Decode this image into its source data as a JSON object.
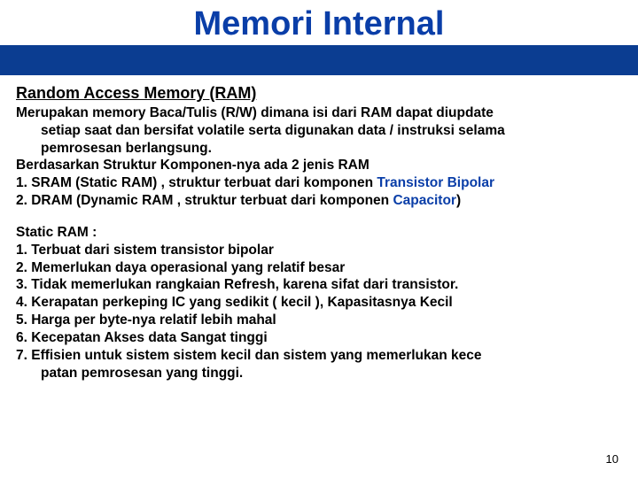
{
  "colors": {
    "title": "#0a3ea8",
    "bar": "#0b3d91",
    "highlight": "#0a3ea8",
    "text": "#000000"
  },
  "title": "Memori Internal",
  "section_heading": "Random Access Memory (RAM)",
  "p1_l1": "Merupakan memory Baca/Tulis (R/W) dimana isi dari RAM dapat diupdate",
  "p1_l2": "setiap saat dan bersifat volatile serta digunakan data / instruksi selama",
  "p1_l3": "pemrosesan berlangsung.",
  "p1_l4": "Berdasarkan Struktur Komponen-nya ada 2 jenis RAM",
  "p1_l5a": "1. SRAM (Static RAM) , struktur terbuat dari komponen ",
  "p1_l5b": "Transistor Bipolar",
  "p1_l6a": "2. DRAM (Dynamic RAM  , struktur terbuat dari komponen ",
  "p1_l6b": "Capacitor",
  "p1_l6c": ")",
  "p2_l1": "Static RAM :",
  "p2_l2": "1. Terbuat dari sistem transistor bipolar",
  "p2_l3": "2. Memerlukan daya operasional yang relatif besar",
  "p2_l4": "3. Tidak memerlukan rangkaian Refresh, karena sifat dari transistor.",
  "p2_l5": "4. Kerapatan perkeping IC yang sedikit ( kecil ), Kapasitasnya Kecil",
  "p2_l6": "5. Harga per byte-nya relatif lebih mahal",
  "p2_l7": "6. Kecepatan Akses data Sangat tinggi",
  "p2_l8": "7. Effisien untuk sistem sistem kecil dan sistem yang memerlukan  kece",
  "p2_l9": "patan pemrosesan yang tinggi.",
  "page_number": "10"
}
